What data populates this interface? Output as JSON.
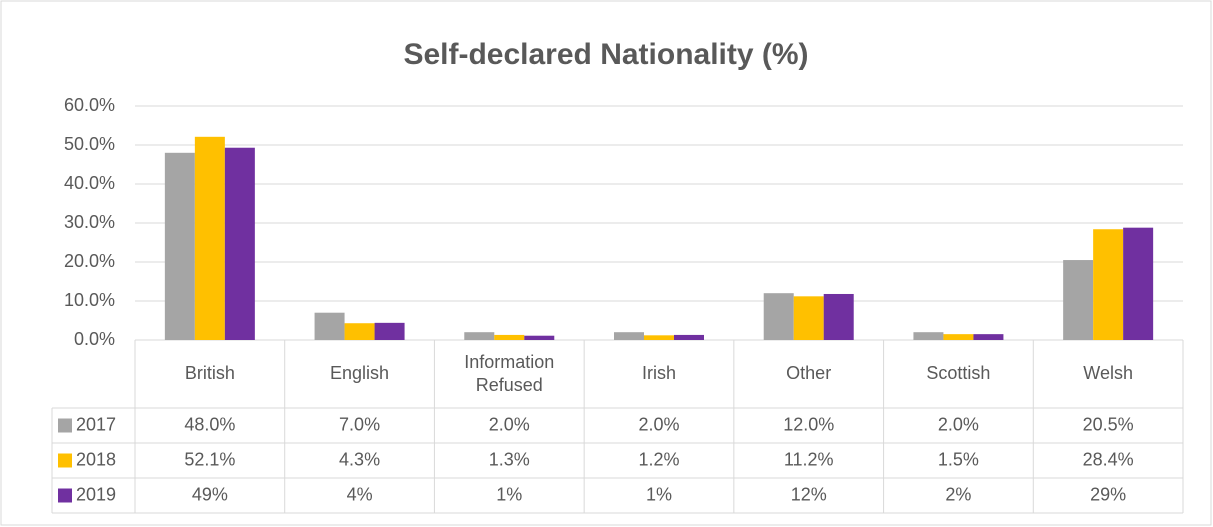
{
  "chart_data": {
    "type": "bar",
    "title": "Self-declared Nationality (%)",
    "categories": [
      "British",
      "English",
      "Information Refused",
      "Irish",
      "Other",
      "Scottish",
      "Welsh"
    ],
    "series": [
      {
        "name": "2017",
        "color": "#a5a5a5",
        "values": [
          48.0,
          7.0,
          2.0,
          2.0,
          12.0,
          2.0,
          20.5
        ],
        "value_labels": [
          "48.0%",
          "7.0%",
          "2.0%",
          "2.0%",
          "12.0%",
          "2.0%",
          "20.5%"
        ]
      },
      {
        "name": "2018",
        "color": "#ffc000",
        "values": [
          52.1,
          4.3,
          1.3,
          1.2,
          11.2,
          1.5,
          28.4
        ],
        "value_labels": [
          "52.1%",
          "4.3%",
          "1.3%",
          "1.2%",
          "11.2%",
          "1.5%",
          "28.4%"
        ]
      },
      {
        "name": "2019",
        "color": "#7030a0",
        "values": [
          49.3,
          4.4,
          1.1,
          1.3,
          11.8,
          1.5,
          28.8
        ],
        "value_labels": [
          "49%",
          "4%",
          "1%",
          "1%",
          "12%",
          "2%",
          "29%"
        ]
      }
    ],
    "ylim": [
      0,
      60
    ],
    "yticks": [
      {
        "value": 0,
        "label": "0.0%"
      },
      {
        "value": 10,
        "label": "10.0%"
      },
      {
        "value": 20,
        "label": "20.0%"
      },
      {
        "value": 30,
        "label": "30.0%"
      },
      {
        "value": 40,
        "label": "40.0%"
      },
      {
        "value": 50,
        "label": "50.0%"
      },
      {
        "value": 60,
        "label": "60.0%"
      }
    ],
    "grid": true
  }
}
